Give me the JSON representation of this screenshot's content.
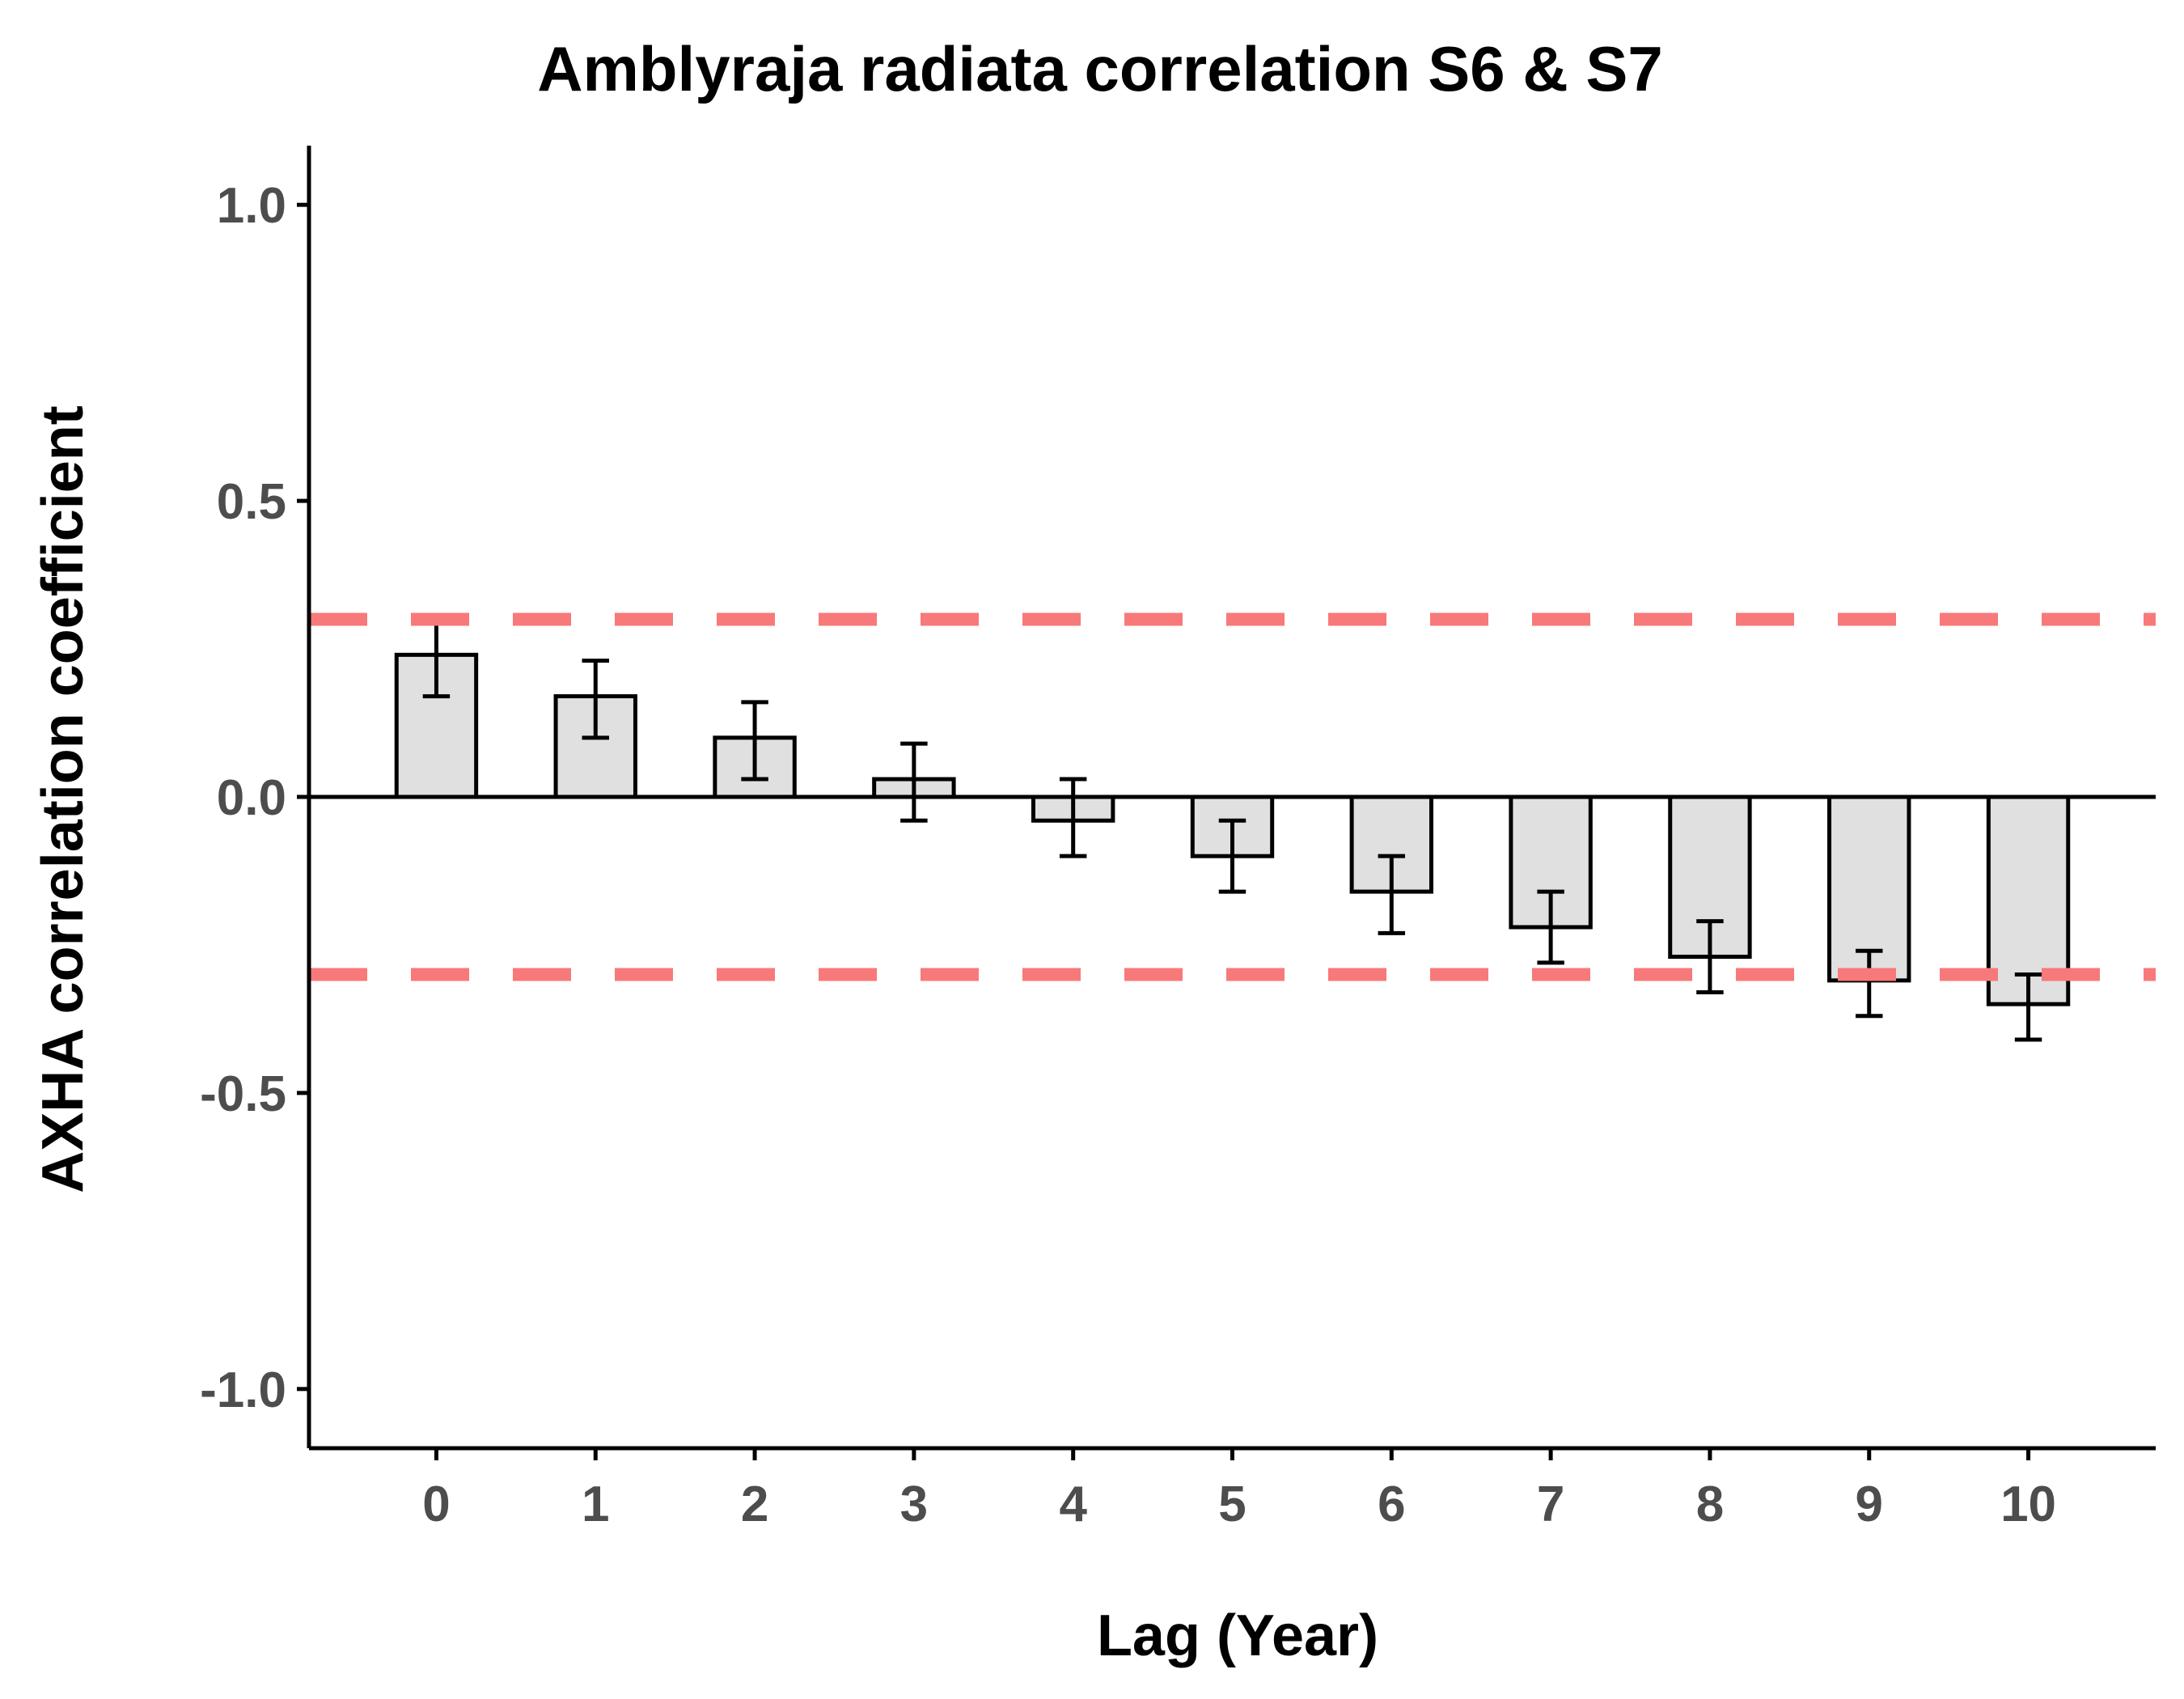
{
  "chart_data": {
    "type": "bar",
    "title": "Amblyraja radiata correlation S6 & S7",
    "xlabel": "Lag (Year)",
    "ylabel": "AXHA correlation coefficient",
    "categories": [
      "0",
      "1",
      "2",
      "3",
      "4",
      "5",
      "6",
      "7",
      "8",
      "9",
      "10"
    ],
    "values": [
      0.24,
      0.17,
      0.1,
      0.03,
      -0.04,
      -0.1,
      -0.16,
      -0.22,
      -0.27,
      -0.31,
      -0.35
    ],
    "error_low": [
      0.17,
      0.1,
      0.03,
      -0.04,
      -0.1,
      -0.16,
      -0.23,
      -0.28,
      -0.33,
      -0.37,
      -0.41
    ],
    "error_high": [
      0.3,
      0.23,
      0.16,
      0.09,
      0.03,
      -0.04,
      -0.1,
      -0.16,
      -0.21,
      -0.26,
      -0.3
    ],
    "ylim": [
      -1.1,
      1.1
    ],
    "yticks": [
      1.0,
      0.5,
      0.0,
      -0.5,
      -1.0
    ],
    "ytick_labels": [
      "1.0",
      "0.5",
      "0.0",
      "-0.5",
      "-1.0"
    ],
    "reference_lines": [
      0.3,
      -0.3
    ],
    "zero_line": 0.0,
    "grid": false,
    "legend": "none",
    "colors": {
      "bar_fill": "#e0e0e0",
      "bar_stroke": "#000000",
      "reference_line": "#f8797a",
      "axis": "#000000",
      "tick_label": "#4d4d4d"
    }
  }
}
